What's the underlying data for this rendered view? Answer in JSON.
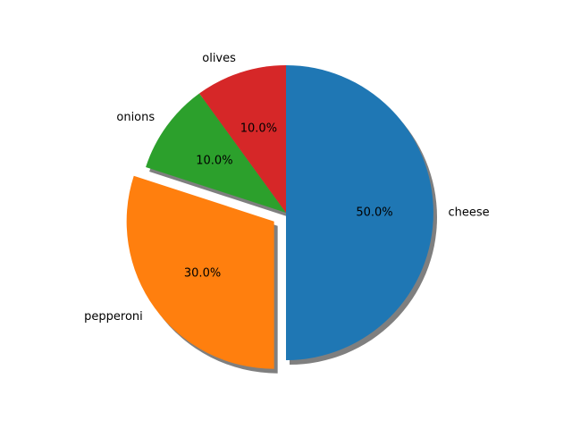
{
  "chart_data": {
    "type": "pie",
    "categories": [
      "cheese",
      "pepperoni",
      "onions",
      "olives"
    ],
    "values": [
      50,
      30,
      10,
      10
    ],
    "percent_labels": [
      "50.0%",
      "30.0%",
      "10.0%",
      "10.0%"
    ],
    "colors": [
      "#1f77b4",
      "#ff7f0e",
      "#2ca02c",
      "#d62728"
    ],
    "explode": [
      0,
      0.1,
      0,
      0
    ],
    "start_angle_deg": 90,
    "direction": "clockwise",
    "shadow": true,
    "title": ""
  }
}
